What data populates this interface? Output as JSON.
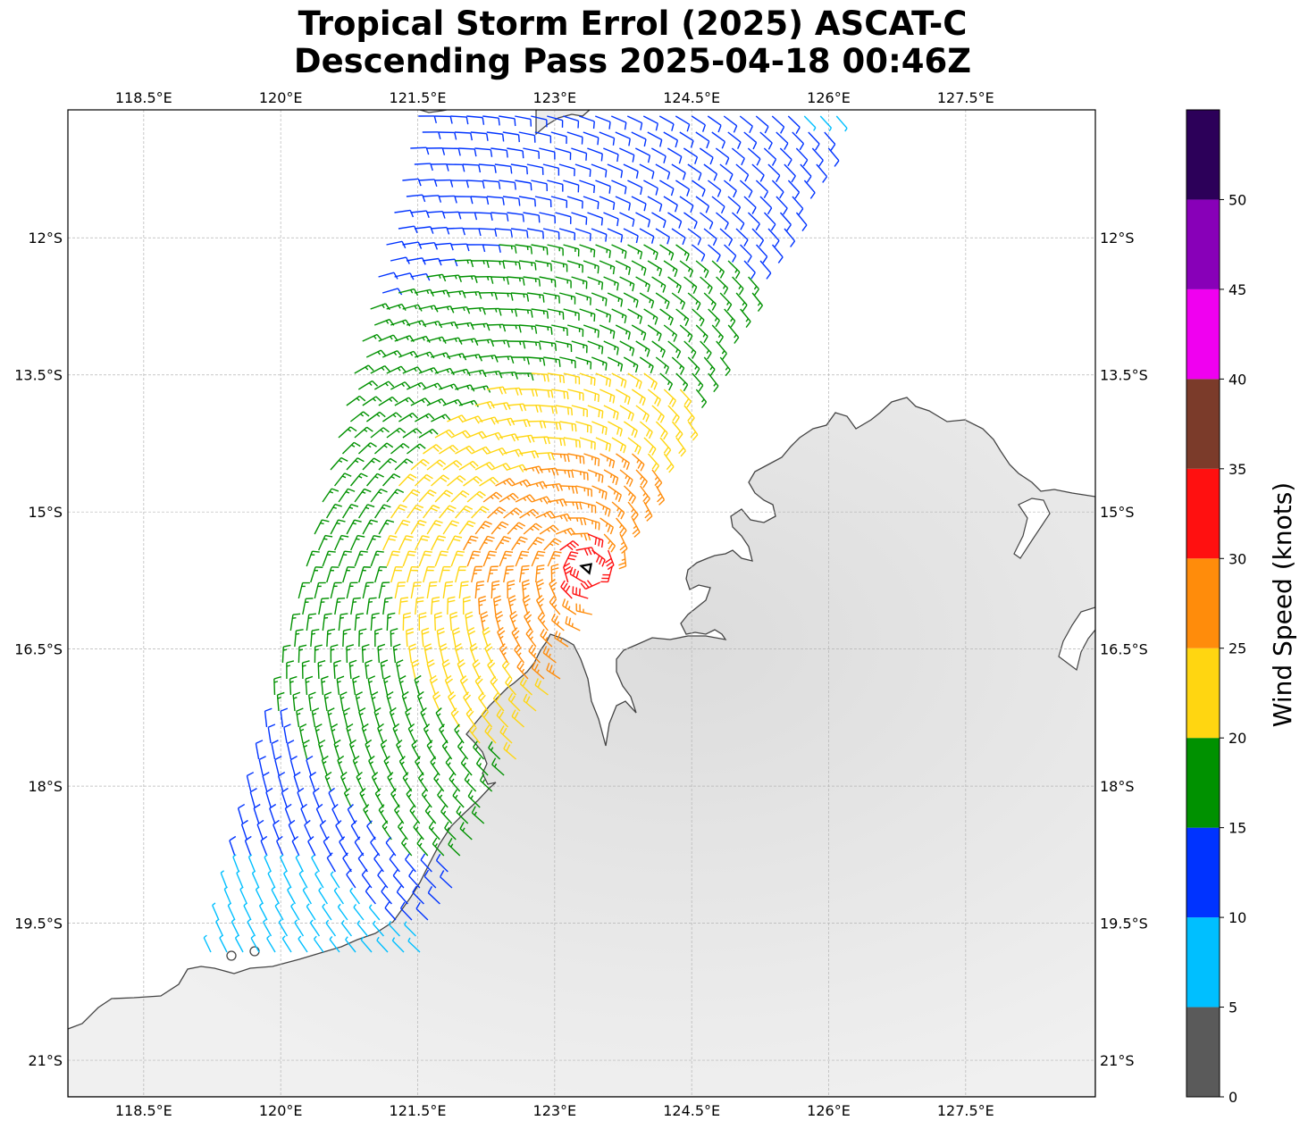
{
  "title_line1": "Tropical Storm Errol (2025) ASCAT-C",
  "title_line2": "Descending Pass 2025-04-18 00:46Z",
  "lon_ticks": [
    "118.5°E",
    "120°E",
    "121.5°E",
    "123°E",
    "124.5°E",
    "126°E",
    "127.5°E"
  ],
  "lat_ticks": [
    "12°S",
    "13.5°S",
    "15°S",
    "16.5°S",
    "18°S",
    "19.5°S",
    "21°S"
  ],
  "lon_values": [
    118.5,
    120.0,
    121.5,
    123.0,
    124.5,
    126.0,
    127.5
  ],
  "lat_values": [
    -12.0,
    -13.5,
    -15.0,
    -16.5,
    -18.0,
    -19.5,
    -21.0
  ],
  "map_extent": {
    "lon_min": 117.67,
    "lon_max": 128.92,
    "lat_min": -21.4,
    "lat_max": -10.6
  },
  "colorbar": {
    "label": "Wind Speed (knots)",
    "ticks": [
      "0",
      "5",
      "10",
      "15",
      "20",
      "25",
      "30",
      "35",
      "40",
      "45",
      "50"
    ],
    "bins": [
      {
        "min": 0,
        "max": 5,
        "color": "#5a5a5a"
      },
      {
        "min": 5,
        "max": 10,
        "color": "#00bfff"
      },
      {
        "min": 10,
        "max": 15,
        "color": "#0033ff"
      },
      {
        "min": 15,
        "max": 20,
        "color": "#009100"
      },
      {
        "min": 20,
        "max": 25,
        "color": "#ffd611"
      },
      {
        "min": 25,
        "max": 30,
        "color": "#ff8c0b"
      },
      {
        "min": 30,
        "max": 35,
        "color": "#ff1010"
      },
      {
        "min": 35,
        "max": 40,
        "color": "#7b3b2a"
      },
      {
        "min": 40,
        "max": 45,
        "color": "#f000f0"
      },
      {
        "min": 45,
        "max": 50,
        "color": "#8800b8"
      },
      {
        "min": 50,
        "max": 55,
        "color": "#2c0059"
      }
    ]
  },
  "storm_center": {
    "lon": 123.35,
    "lat": -15.62,
    "icon": "tropical-storm-icon"
  },
  "colors": {
    "coastline": "#444444",
    "gridline": "#b4b4b4",
    "land": "#e4e4e4",
    "ocean": "#ffffff"
  }
}
